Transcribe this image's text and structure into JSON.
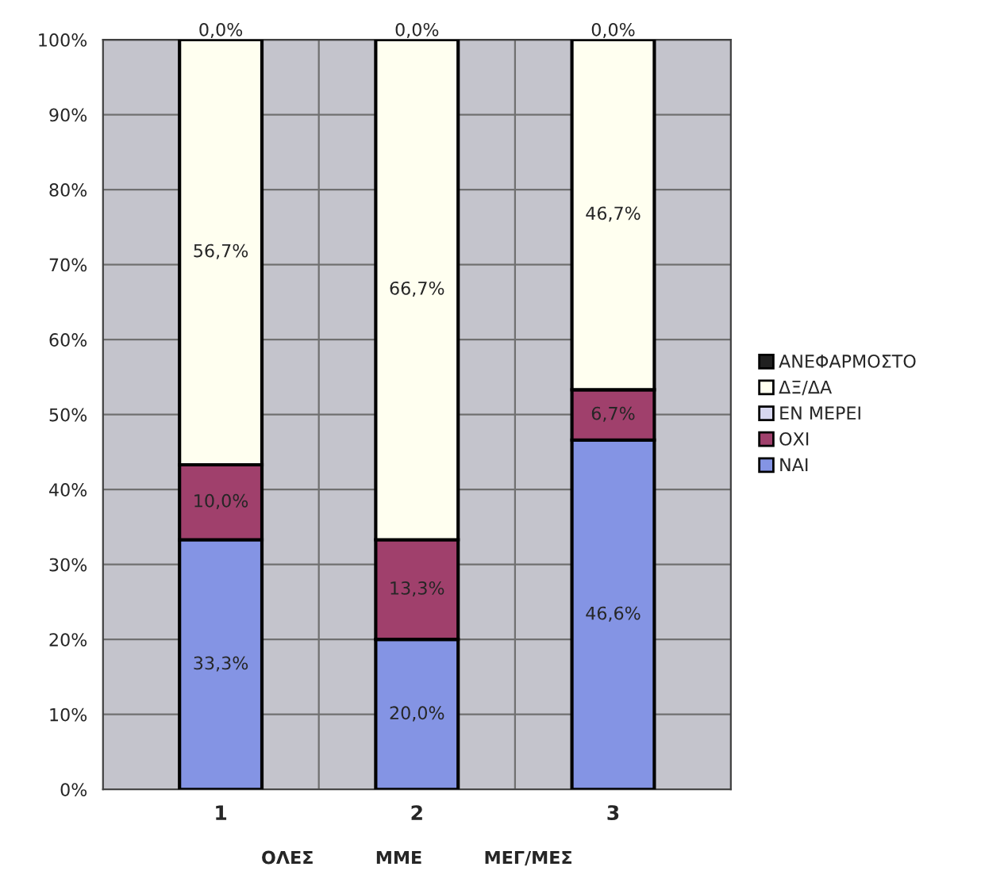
{
  "chart_data": {
    "type": "bar",
    "stacked": true,
    "categories": [
      "1",
      "2",
      "3"
    ],
    "xlabel": "ΟΛΕΣ          ΜΜΕ          ΜΕΓ/ΜΕΣ",
    "series": [
      {
        "name": "ΝΑΙ",
        "color": "#8494e4",
        "values": [
          33.3,
          20.0,
          46.6
        ],
        "value_labels": [
          "33,3%",
          "20,0%",
          "46,6%"
        ]
      },
      {
        "name": "ΟΧΙ",
        "color": "#a0406c",
        "values": [
          10.0,
          13.3,
          6.7
        ],
        "value_labels": [
          "10,0%",
          "13,3%",
          "6,7%"
        ]
      },
      {
        "name": "ΕΝ ΜΕΡΕΙ",
        "color": "#d8d8f0",
        "values": [
          0,
          0,
          0
        ]
      },
      {
        "name": "ΔΞ/ΔΑ",
        "color": "#fffff0",
        "values": [
          56.7,
          66.7,
          46.7
        ],
        "value_labels": [
          "56,7%",
          "66,7%",
          "46,7%"
        ]
      },
      {
        "name": "ΑΝΕΦΑΡΜΟΣΤΟ",
        "color": "#202020",
        "values": [
          0,
          0,
          0
        ],
        "value_labels": [
          "0,0%",
          "0,0%",
          "0,0%"
        ]
      }
    ],
    "ylim": [
      0,
      100
    ],
    "yticks": [
      {
        "value": 0,
        "label": "0%"
      },
      {
        "value": 10,
        "label": "10%"
      },
      {
        "value": 20,
        "label": "20%"
      },
      {
        "value": 30,
        "label": "30%"
      },
      {
        "value": 40,
        "label": "40%"
      },
      {
        "value": 50,
        "label": "50%"
      },
      {
        "value": 60,
        "label": "60%"
      },
      {
        "value": 70,
        "label": "70%"
      },
      {
        "value": 80,
        "label": "80%"
      },
      {
        "value": 90,
        "label": "90%"
      },
      {
        "value": 100,
        "label": "100%"
      }
    ],
    "grid": true,
    "legend": "right"
  }
}
